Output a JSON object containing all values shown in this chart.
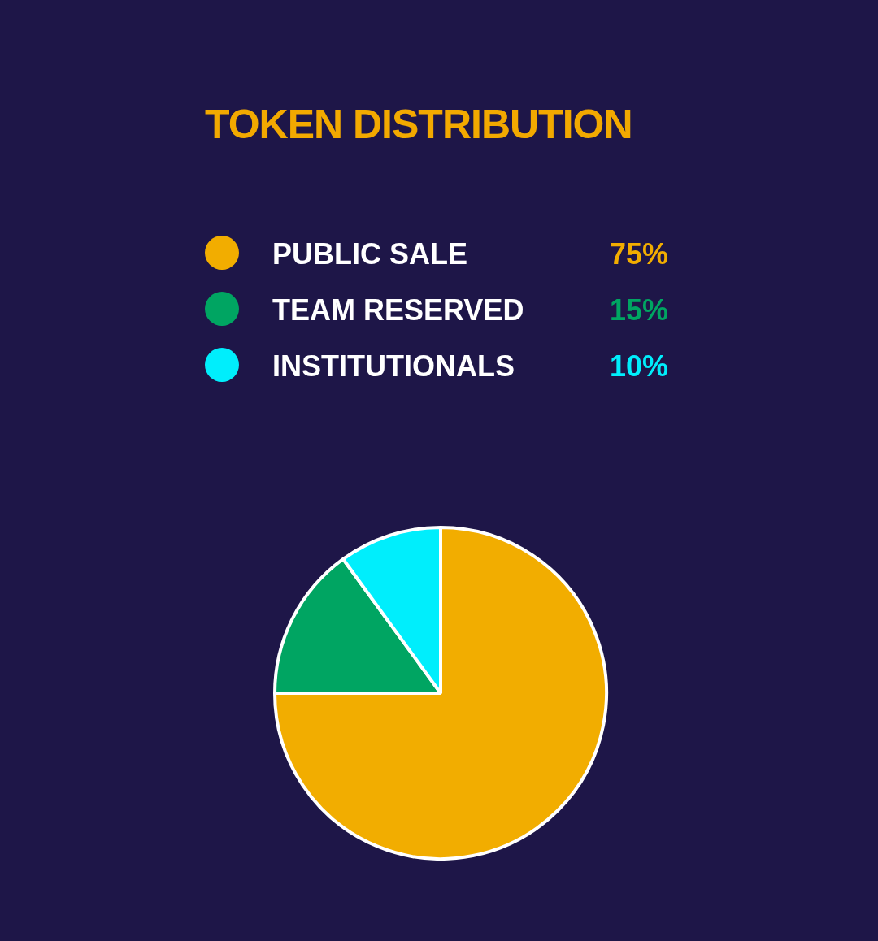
{
  "chart_data": {
    "type": "pie",
    "title": "TOKEN DISTRIBUTION",
    "categories": [
      "PUBLIC SALE",
      "TEAM RESERVED",
      "INSTITUTIONALS"
    ],
    "values": [
      75,
      15,
      10
    ],
    "colors": [
      "#f2ad00",
      "#00a562",
      "#00eefc"
    ],
    "value_labels": [
      "75%",
      "15%",
      "10%"
    ],
    "legend": "top"
  }
}
